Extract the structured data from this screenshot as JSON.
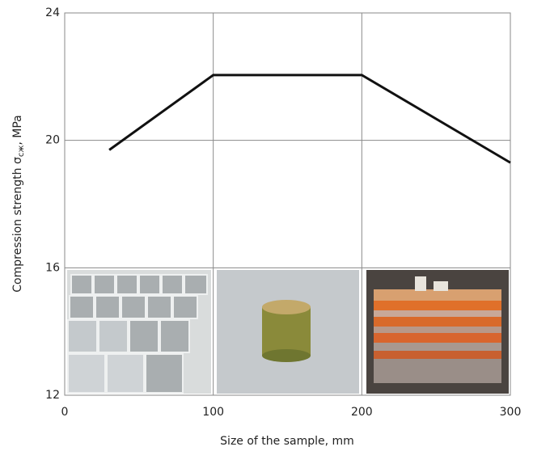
{
  "chart_data": {
    "type": "line",
    "x_label": "Size of the sample, mm",
    "y_label": {
      "text": "Compression strength σ",
      "subscript": "сж",
      "suffix": ", MPa"
    },
    "x": [
      30,
      100,
      200,
      300
    ],
    "series": [
      {
        "color": "#111111",
        "values": [
          19.7,
          22.05,
          22.05,
          19.3
        ]
      }
    ],
    "xlim": [
      0,
      300
    ],
    "xticks": [
      0,
      100,
      200,
      300
    ],
    "ylim": [
      12,
      24
    ],
    "yticks": [
      12,
      16,
      20,
      24
    ],
    "grid": true
  }
}
